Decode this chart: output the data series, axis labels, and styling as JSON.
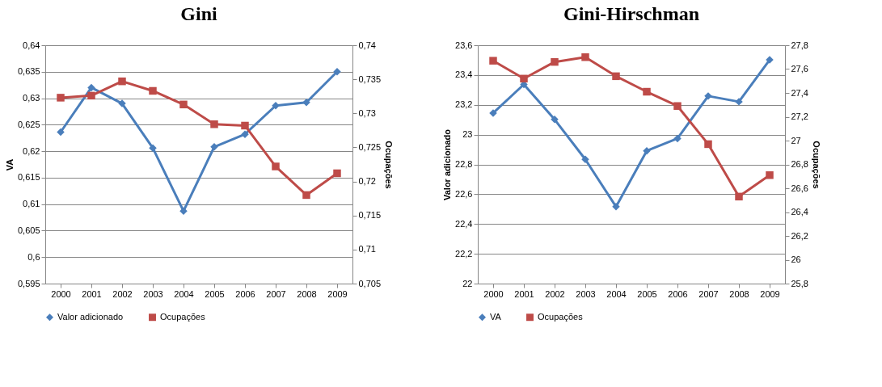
{
  "chart_data": [
    {
      "type": "line",
      "title": "Gini",
      "categories": [
        "2000",
        "2001",
        "2002",
        "2003",
        "2004",
        "2005",
        "2006",
        "2007",
        "2008",
        "2009"
      ],
      "ylabel": "VA",
      "y2label": "Ocupações",
      "ylim": [
        0.595,
        0.64
      ],
      "yticks": [
        {
          "value": 0.595,
          "label": "0,595"
        },
        {
          "value": 0.6,
          "label": "0,6"
        },
        {
          "value": 0.605,
          "label": "0,605"
        },
        {
          "value": 0.61,
          "label": "0,61"
        },
        {
          "value": 0.615,
          "label": "0,615"
        },
        {
          "value": 0.62,
          "label": "0,62"
        },
        {
          "value": 0.625,
          "label": "0,625"
        },
        {
          "value": 0.63,
          "label": "0,63"
        },
        {
          "value": 0.635,
          "label": "0,635"
        },
        {
          "value": 0.64,
          "label": "0,64"
        }
      ],
      "y2lim": [
        0.705,
        0.74
      ],
      "y2ticks": [
        {
          "value": 0.705,
          "label": "0,705"
        },
        {
          "value": 0.71,
          "label": "0,71"
        },
        {
          "value": 0.715,
          "label": "0,715"
        },
        {
          "value": 0.72,
          "label": "0,72"
        },
        {
          "value": 0.725,
          "label": "0,725"
        },
        {
          "value": 0.73,
          "label": "0,73"
        },
        {
          "value": 0.735,
          "label": "0,735"
        },
        {
          "value": 0.74,
          "label": "0,74"
        }
      ],
      "grid": "y",
      "legend": "bottom",
      "series": [
        {
          "name": "Valor adicionado",
          "color": "#4a7ebb",
          "marker": "diamond",
          "values": [
            0.6236,
            0.632,
            0.629,
            0.6206,
            0.6087,
            0.6208,
            0.6232,
            0.6286,
            0.6292,
            0.635
          ]
        },
        {
          "name": "Ocupações",
          "color": "#be4b48",
          "marker": "square",
          "axis": "y2",
          "values": [
            0.7323,
            0.7326,
            0.7347,
            0.7333,
            0.7313,
            0.7284,
            0.7282,
            0.7222,
            0.718,
            0.7212
          ]
        }
      ]
    },
    {
      "type": "line",
      "title": "Gini-Hirschman",
      "categories": [
        "2000",
        "2001",
        "2002",
        "2003",
        "2004",
        "2005",
        "2006",
        "2007",
        "2008",
        "2009"
      ],
      "ylabel": "Valor adicionado",
      "y2label": "Ocupações",
      "ylim": [
        22,
        23.6
      ],
      "yticks": [
        {
          "value": 22,
          "label": "22"
        },
        {
          "value": 22.2,
          "label": "22,2"
        },
        {
          "value": 22.4,
          "label": "22,4"
        },
        {
          "value": 22.6,
          "label": "22,6"
        },
        {
          "value": 22.8,
          "label": "22,8"
        },
        {
          "value": 23,
          "label": "23"
        },
        {
          "value": 23.2,
          "label": "23,2"
        },
        {
          "value": 23.4,
          "label": "23,4"
        },
        {
          "value": 23.6,
          "label": "23,6"
        }
      ],
      "y2lim": [
        25.8,
        27.8
      ],
      "y2ticks": [
        {
          "value": 25.8,
          "label": "25,8"
        },
        {
          "value": 26,
          "label": "26"
        },
        {
          "value": 26.2,
          "label": "26,2"
        },
        {
          "value": 26.4,
          "label": "26,4"
        },
        {
          "value": 26.6,
          "label": "26,6"
        },
        {
          "value": 26.8,
          "label": "26,8"
        },
        {
          "value": 27,
          "label": "27"
        },
        {
          "value": 27.2,
          "label": "27,2"
        },
        {
          "value": 27.4,
          "label": "27,4"
        },
        {
          "value": 27.6,
          "label": "27,6"
        },
        {
          "value": 27.8,
          "label": "27,8"
        }
      ],
      "grid": "y",
      "legend": "bottom",
      "series": [
        {
          "name": "VA",
          "color": "#4a7ebb",
          "marker": "diamond",
          "values": [
            23.145,
            23.337,
            23.102,
            22.834,
            22.516,
            22.891,
            22.974,
            23.259,
            23.221,
            23.502
          ]
        },
        {
          "name": "Ocupações",
          "color": "#be4b48",
          "marker": "square",
          "axis": "y2",
          "values": [
            27.67,
            27.52,
            27.66,
            27.7,
            27.54,
            27.41,
            27.29,
            26.97,
            26.53,
            26.71
          ]
        }
      ]
    }
  ]
}
